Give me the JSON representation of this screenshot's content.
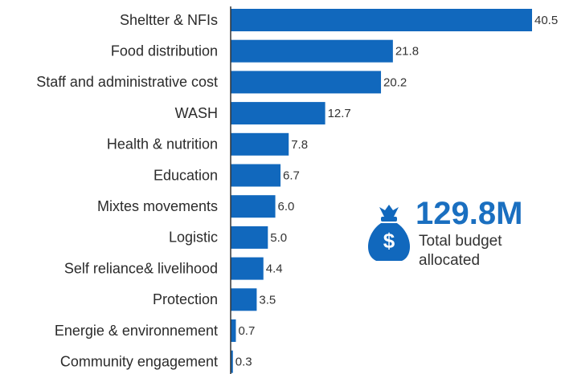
{
  "chart_data": {
    "type": "barh",
    "categories": [
      "Sheltter & NFIs",
      "Food distribution",
      "Staff and administrative cost",
      "WASH",
      "Health & nutrition",
      "Education",
      "Mixtes movements",
      "Logistic",
      "Self reliance& livelihood",
      "Protection",
      "Energie & environnement",
      "Community engagement"
    ],
    "values": [
      40.5,
      21.8,
      20.2,
      12.7,
      7.8,
      6.7,
      6.0,
      5.0,
      4.4,
      3.5,
      0.7,
      0.3
    ],
    "value_labels": [
      "40.5",
      "21.8",
      "20.2",
      "12.7",
      "7.8",
      "6.7",
      "6.0",
      "5.0",
      "4.4",
      "3.5",
      "0.7",
      "0.3"
    ],
    "color": "#1168bd",
    "annotation": {
      "value": "129.8M",
      "label": "Total budget allocated"
    }
  }
}
